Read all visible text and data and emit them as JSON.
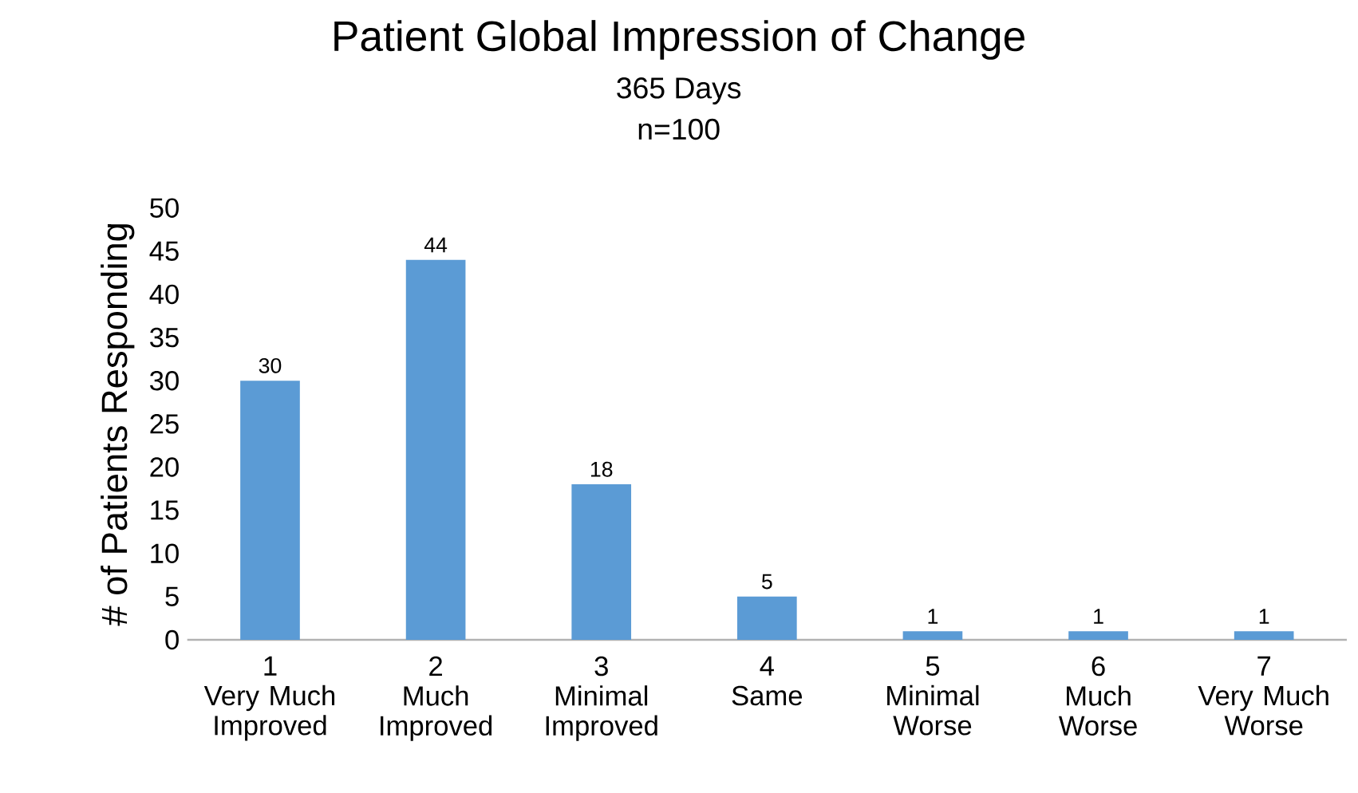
{
  "chart_data": {
    "type": "bar",
    "title": "Patient Global Impression of Change",
    "subtitle": "365 Days",
    "annotations": [
      "n=100"
    ],
    "categories": [
      "1\nVery Much\nImproved",
      "2\nMuch\nImproved",
      "3\nMinimal\nImproved",
      "4\nSame",
      "5\nMinimal\nWorse",
      "6\nMuch\nWorse",
      "7\nVery Much\nWorse"
    ],
    "values": [
      30,
      44,
      18,
      5,
      1,
      1,
      1
    ],
    "color": "#5b9bd5",
    "ylabel": "# of Patients Responding",
    "ylim": [
      0,
      50
    ],
    "yticks": [
      0,
      5,
      10,
      15,
      20,
      25,
      30,
      35,
      40,
      45,
      50
    ],
    "data_labels": true
  }
}
